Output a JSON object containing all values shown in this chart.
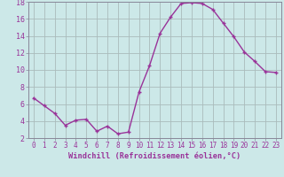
{
  "x": [
    0,
    1,
    2,
    3,
    4,
    5,
    6,
    7,
    8,
    9,
    10,
    11,
    12,
    13,
    14,
    15,
    16,
    17,
    18,
    19,
    20,
    21,
    22,
    23
  ],
  "y": [
    6.7,
    5.8,
    4.9,
    3.5,
    4.1,
    4.2,
    2.8,
    3.4,
    2.5,
    2.7,
    7.4,
    10.5,
    14.3,
    16.2,
    17.8,
    17.9,
    17.8,
    17.1,
    15.5,
    13.9,
    12.1,
    11.0,
    9.8,
    9.7
  ],
  "line_color": "#993399",
  "bg_color": "#cce8e8",
  "grid_color": "#aabbbb",
  "xlabel": "Windchill (Refroidissement éolien,°C)",
  "ylim": [
    2,
    18
  ],
  "xlim": [
    -0.5,
    23.5
  ],
  "yticks": [
    2,
    4,
    6,
    8,
    10,
    12,
    14,
    16,
    18
  ],
  "xticks": [
    0,
    1,
    2,
    3,
    4,
    5,
    6,
    7,
    8,
    9,
    10,
    11,
    12,
    13,
    14,
    15,
    16,
    17,
    18,
    19,
    20,
    21,
    22,
    23
  ],
  "tick_fontsize": 5.5,
  "xlabel_fontsize": 6.2
}
